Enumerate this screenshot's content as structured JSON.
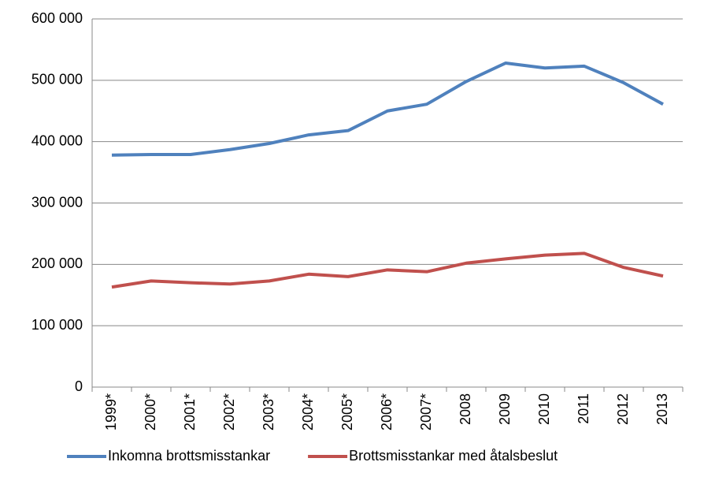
{
  "chart_data": {
    "type": "line",
    "categories": [
      "1999*",
      "2000*",
      "2001*",
      "2002*",
      "2003*",
      "2004*",
      "2005*",
      "2006*",
      "2007*",
      "2008",
      "2009",
      "2010",
      "2011",
      "2012",
      "2013"
    ],
    "series": [
      {
        "name": "Inkomna brottsmisstankar",
        "color": "#4f81bd",
        "values": [
          378000,
          379000,
          379000,
          387000,
          397000,
          411000,
          418000,
          450000,
          461000,
          498000,
          528000,
          520000,
          523000,
          496000,
          461000
        ]
      },
      {
        "name": "Brottsmisstankar med åtalsbeslut",
        "color": "#c0504d",
        "values": [
          163000,
          173000,
          170000,
          168000,
          173000,
          184000,
          180000,
          191000,
          188000,
          202000,
          209000,
          215000,
          218000,
          195000,
          181000
        ]
      }
    ],
    "ylim": [
      0,
      600000
    ],
    "yticks": [
      0,
      {
        "value": 100000,
        "label": "100 000"
      },
      {
        "value": 200000,
        "label": "200 000"
      },
      {
        "value": 300000,
        "label": "300 000"
      },
      {
        "value": 400000,
        "label": "400 000"
      },
      {
        "value": 500000,
        "label": "500 000"
      },
      {
        "value": 600000,
        "label": "600 000"
      }
    ],
    "grid": true,
    "legend": "bottom"
  }
}
